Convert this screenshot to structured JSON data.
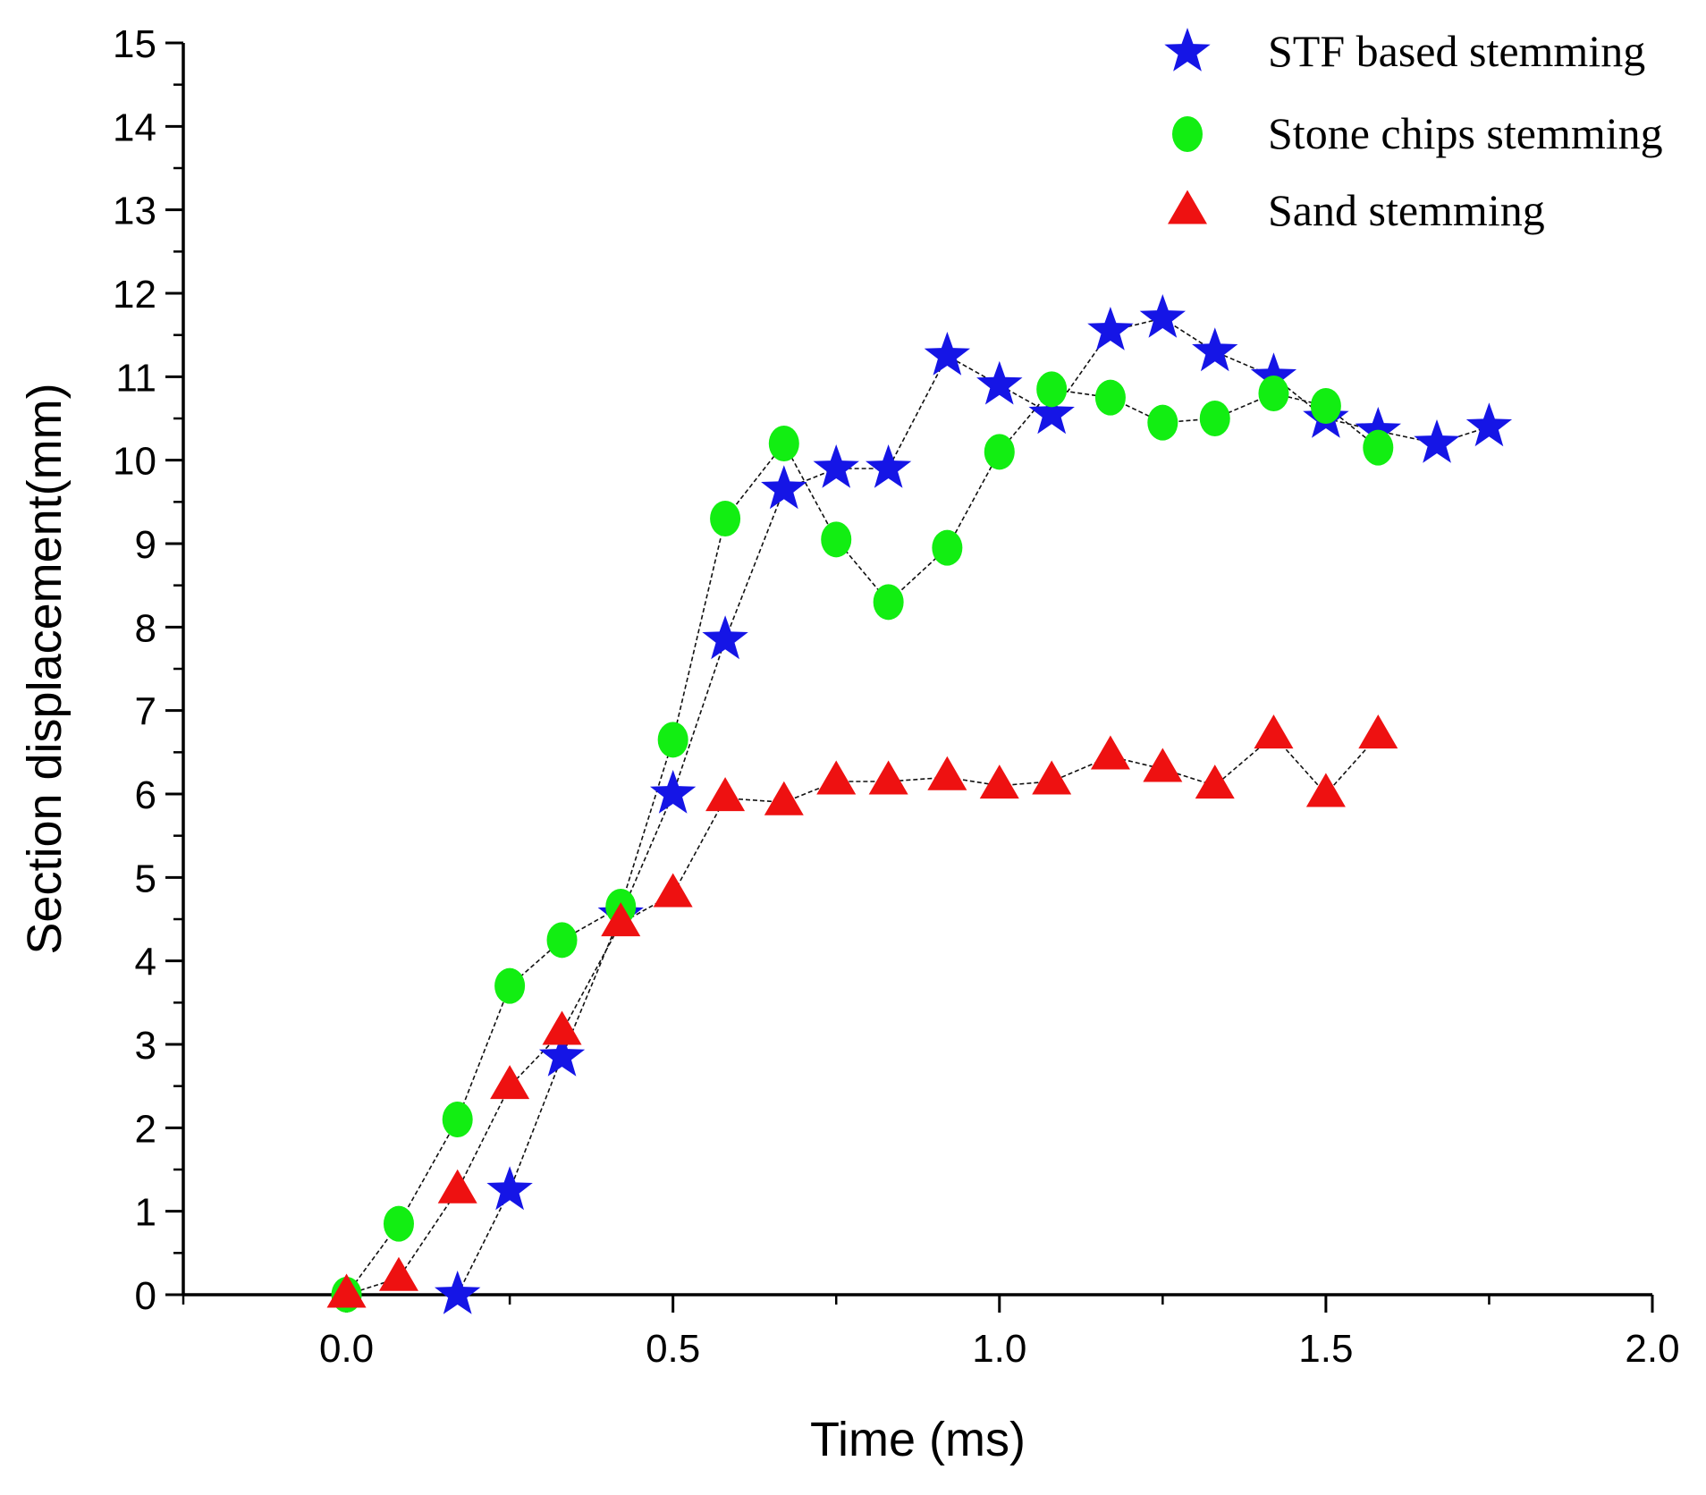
{
  "chart_data": {
    "type": "scatter",
    "title": "",
    "xlabel": "Time (ms)",
    "ylabel": "Section displacement(mm)",
    "xlim": [
      -0.25,
      2.0
    ],
    "ylim": [
      0,
      15
    ],
    "xticks": [
      "0.0",
      "0.5",
      "1.0",
      "1.5",
      "2.0"
    ],
    "xtick_values": [
      0.0,
      0.5,
      1.0,
      1.5,
      2.0
    ],
    "yticks": [
      "0",
      "1",
      "2",
      "3",
      "4",
      "5",
      "6",
      "7",
      "8",
      "9",
      "10",
      "11",
      "12",
      "13",
      "14",
      "15"
    ],
    "ytick_values": [
      0,
      1,
      2,
      3,
      4,
      5,
      6,
      7,
      8,
      9,
      10,
      11,
      12,
      13,
      14,
      15
    ],
    "legend_position": "top-right",
    "series": [
      {
        "name": "STF based stemming",
        "marker": "star",
        "color": "#1515e6",
        "x": [
          0.17,
          0.25,
          0.33,
          0.42,
          0.5,
          0.58,
          0.67,
          0.75,
          0.83,
          0.92,
          1.0,
          1.08,
          1.17,
          1.25,
          1.33,
          1.42,
          1.5,
          1.58,
          1.67,
          1.75
        ],
        "y": [
          0.0,
          1.25,
          2.85,
          4.55,
          6.0,
          7.85,
          9.65,
          9.9,
          9.9,
          11.25,
          10.9,
          10.55,
          11.55,
          11.7,
          11.3,
          11.0,
          10.5,
          10.35,
          10.2,
          10.4
        ]
      },
      {
        "name": "Stone chips stemming",
        "marker": "circle",
        "color": "#12ee12",
        "x": [
          0.0,
          0.08,
          0.17,
          0.25,
          0.33,
          0.42,
          0.5,
          0.58,
          0.67,
          0.75,
          0.83,
          0.92,
          1.0,
          1.08,
          1.17,
          1.25,
          1.33,
          1.42,
          1.5,
          1.58
        ],
        "y": [
          0.0,
          0.85,
          2.1,
          3.7,
          4.25,
          4.65,
          6.65,
          9.3,
          10.2,
          9.05,
          8.3,
          8.95,
          10.1,
          10.85,
          10.75,
          10.45,
          10.5,
          10.8,
          10.65,
          10.15
        ]
      },
      {
        "name": "Sand stemming",
        "marker": "triangle",
        "color": "#ee1111",
        "x": [
          0.0,
          0.08,
          0.17,
          0.25,
          0.33,
          0.42,
          0.5,
          0.58,
          0.67,
          0.75,
          0.83,
          0.92,
          1.0,
          1.08,
          1.17,
          1.25,
          1.33,
          1.42,
          1.5,
          1.58
        ],
        "y": [
          0.0,
          0.2,
          1.25,
          2.5,
          3.15,
          4.45,
          4.8,
          5.95,
          5.9,
          6.15,
          6.15,
          6.2,
          6.1,
          6.15,
          6.45,
          6.3,
          6.1,
          6.7,
          6.0,
          6.7
        ]
      }
    ]
  }
}
